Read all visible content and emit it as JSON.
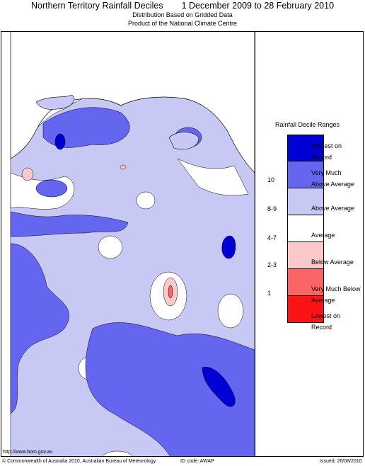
{
  "header": {
    "title_left": "Northern Territory Rainfall Deciles",
    "title_right": "1 December 2009 to 28 February 2010",
    "subtitle1": "Distribution Based on Gridded Data",
    "subtitle2": "Product of the National Climate Centre"
  },
  "legend": {
    "title": "Rainfall Decile Ranges",
    "items": [
      {
        "label": "Highest on Record",
        "decile": "",
        "color": "#0000d4"
      },
      {
        "label": "Very Much Above Average",
        "decile": "10",
        "color": "#6466f0"
      },
      {
        "label": "Above Average",
        "decile": "8-9",
        "color": "#c7c8f4"
      },
      {
        "label": "Average",
        "decile": "4-7",
        "color": "#ffffff"
      },
      {
        "label": "Below Average",
        "decile": "2-3",
        "color": "#fcc9cb"
      },
      {
        "label": "Very Much Below Average",
        "decile": "1",
        "color": "#fb6464"
      },
      {
        "label": "Lowest on Record",
        "decile": "",
        "color": "#fc1414"
      }
    ]
  },
  "footer": {
    "url": "http://www.bom.gov.au",
    "copyright": "© Commonwealth of Australia 2010, Australian Bureau of Meteorology",
    "id_code": "ID code: AWAP",
    "issued": "Issued: 26/08/2010"
  }
}
